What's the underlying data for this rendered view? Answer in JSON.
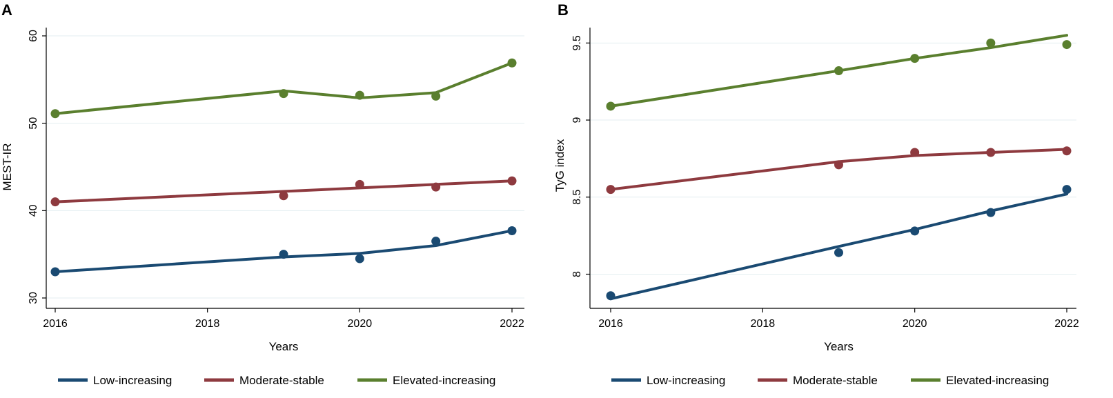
{
  "chart_data": [
    {
      "panel": "A",
      "type": "line",
      "xlabel": "Years",
      "ylabel": "MEST-IR",
      "xlim": [
        2016,
        2022
      ],
      "ylim": [
        30,
        60
      ],
      "x_ticks": [
        "2016",
        "2018",
        "2020",
        "2022"
      ],
      "y_ticks": [
        "30",
        "40",
        "50",
        "60"
      ],
      "grid": true,
      "legend_position": "bottom",
      "series": [
        {
          "name": "Low-increasing",
          "color": "#1a4a72",
          "points": [
            [
              2016,
              33.0
            ],
            [
              2019,
              35.0
            ],
            [
              2020,
              34.5
            ],
            [
              2021,
              36.5
            ],
            [
              2022,
              37.7
            ]
          ],
          "fit": [
            [
              2016,
              33.0
            ],
            [
              2019,
              34.7
            ],
            [
              2020,
              35.1
            ],
            [
              2021,
              36.0
            ],
            [
              2022,
              37.7
            ]
          ]
        },
        {
          "name": "Moderate-stable",
          "color": "#8e3a3f",
          "points": [
            [
              2016,
              41.0
            ],
            [
              2019,
              41.7
            ],
            [
              2020,
              43.0
            ],
            [
              2021,
              42.7
            ],
            [
              2022,
              43.4
            ]
          ],
          "fit": [
            [
              2016,
              41.0
            ],
            [
              2019,
              42.2
            ],
            [
              2020,
              42.6
            ],
            [
              2021,
              43.0
            ],
            [
              2022,
              43.4
            ]
          ]
        },
        {
          "name": "Elevated-increasing",
          "color": "#5a7f2e",
          "points": [
            [
              2016,
              51.1
            ],
            [
              2019,
              53.4
            ],
            [
              2020,
              53.2
            ],
            [
              2021,
              53.1
            ],
            [
              2022,
              56.9
            ]
          ],
          "fit": [
            [
              2016,
              51.1
            ],
            [
              2019,
              53.7
            ],
            [
              2020,
              52.9
            ],
            [
              2021,
              53.5
            ],
            [
              2022,
              56.9
            ]
          ]
        }
      ]
    },
    {
      "panel": "B",
      "type": "line",
      "xlabel": "Years",
      "ylabel": "TyG index",
      "xlim": [
        2016,
        2022
      ],
      "ylim": [
        7.85,
        9.6
      ],
      "x_ticks": [
        "2016",
        "2018",
        "2020",
        "2022"
      ],
      "y_ticks": [
        "8",
        "8.5",
        "9",
        "9.5"
      ],
      "grid": true,
      "legend_position": "bottom",
      "series": [
        {
          "name": "Low-increasing",
          "color": "#1a4a72",
          "points": [
            [
              2016,
              7.86
            ],
            [
              2019,
              8.14
            ],
            [
              2020,
              8.28
            ],
            [
              2021,
              8.4
            ],
            [
              2022,
              8.55
            ]
          ],
          "fit": [
            [
              2016,
              7.84
            ],
            [
              2019,
              8.18
            ],
            [
              2020,
              8.29
            ],
            [
              2021,
              8.41
            ],
            [
              2022,
              8.52
            ]
          ]
        },
        {
          "name": "Moderate-stable",
          "color": "#8e3a3f",
          "points": [
            [
              2016,
              8.55
            ],
            [
              2019,
              8.71
            ],
            [
              2020,
              8.79
            ],
            [
              2021,
              8.79
            ],
            [
              2022,
              8.8
            ]
          ],
          "fit": [
            [
              2016,
              8.55
            ],
            [
              2019,
              8.73
            ],
            [
              2020,
              8.77
            ],
            [
              2021,
              8.79
            ],
            [
              2022,
              8.81
            ]
          ]
        },
        {
          "name": "Elevated-increasing",
          "color": "#5a7f2e",
          "points": [
            [
              2016,
              9.09
            ],
            [
              2019,
              9.32
            ],
            [
              2020,
              9.4
            ],
            [
              2021,
              9.5
            ],
            [
              2022,
              9.49
            ]
          ],
          "fit": [
            [
              2016,
              9.09
            ],
            [
              2019,
              9.32
            ],
            [
              2020,
              9.4
            ],
            [
              2021,
              9.47
            ],
            [
              2022,
              9.55
            ]
          ]
        }
      ]
    }
  ]
}
